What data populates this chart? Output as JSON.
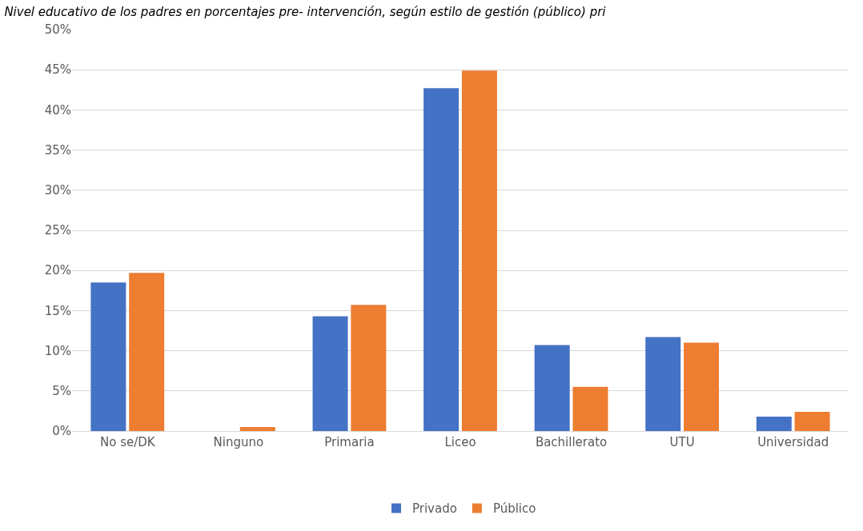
{
  "chart_data": {
    "type": "bar",
    "title": "Nivel educativo de los padres en porcentajes pre- intervención, según estilo de gestión (público) pri",
    "categories": [
      "No se/DK",
      "Ninguno",
      "Primaria",
      "Liceo",
      "Bachillerato",
      "UTU",
      "Universidad"
    ],
    "series": [
      {
        "name": "Privado",
        "color": "#4472c4",
        "values": [
          18.5,
          0,
          14.3,
          42.7,
          10.7,
          11.7,
          1.8
        ]
      },
      {
        "name": "Público",
        "color": "#ed7d31",
        "values": [
          19.7,
          0.5,
          15.7,
          44.9,
          5.5,
          11.0,
          2.4
        ]
      }
    ],
    "ylim": [
      0,
      50
    ],
    "yticks": [
      {
        "value": 0,
        "label": "0%"
      },
      {
        "value": 5,
        "label": "5%"
      },
      {
        "value": 10,
        "label": "10%"
      },
      {
        "value": 15,
        "label": "15%"
      },
      {
        "value": 20,
        "label": "20%"
      },
      {
        "value": 25,
        "label": "25%"
      },
      {
        "value": 30,
        "label": "30%"
      },
      {
        "value": 35,
        "label": "35%"
      },
      {
        "value": 40,
        "label": "40%"
      },
      {
        "value": 45,
        "label": "45%"
      },
      {
        "value": 50,
        "label": "50%"
      }
    ],
    "grid": "y",
    "legend": "bottom"
  }
}
